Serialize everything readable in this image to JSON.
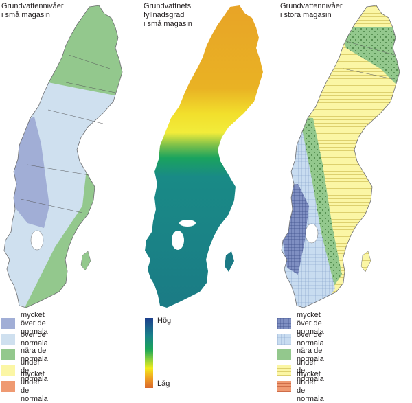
{
  "panels": [
    {
      "title": "Grundvattennivåer\ni små magasin",
      "legend": [
        {
          "label": "mycket över de normala",
          "color": "#a1aed6",
          "pattern": "solid"
        },
        {
          "label": "över de normala",
          "color": "#cfe0ef",
          "pattern": "solid"
        },
        {
          "label": "nära de normala",
          "color": "#93c88d",
          "pattern": "solid"
        },
        {
          "label": "under de normala",
          "color": "#fbf6a5",
          "pattern": "solid"
        },
        {
          "label": "mycket under de normala",
          "color": "#ef9a72",
          "pattern": "solid"
        }
      ]
    },
    {
      "title": "Grundvattnets\nfyllnadsgrad\ni små magasin",
      "ramp": {
        "high_label": "Hög",
        "low_label": "Låg",
        "colors": [
          "#1d3f8c",
          "#19808a",
          "#1aa558",
          "#8dd13b",
          "#f2ec1b",
          "#f0a023",
          "#d9682c"
        ]
      }
    },
    {
      "title": "Grundvattennivåer\ni stora magasin",
      "legend": [
        {
          "label": "mycket över de normala",
          "color": "#7f8fc2",
          "pattern": "grid"
        },
        {
          "label": "över de normala",
          "color": "#c8dcf0",
          "pattern": "grid"
        },
        {
          "label": "nära de normala",
          "color": "#93c88d",
          "pattern": "solid"
        },
        {
          "label": "under de normala",
          "color": "#fbf6a5",
          "pattern": "hlines"
        },
        {
          "label": "mycket under de normala",
          "color": "#ef9a72",
          "pattern": "hlines"
        }
      ]
    }
  ]
}
